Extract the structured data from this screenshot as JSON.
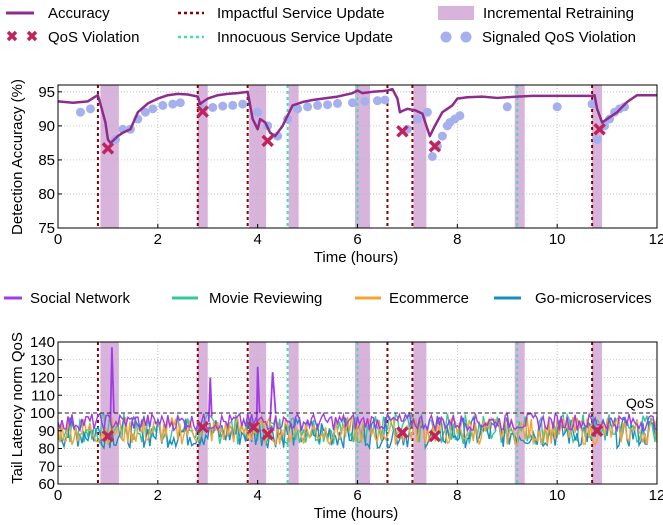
{
  "chart_data": [
    {
      "type": "line",
      "xlabel": "Time (hours)",
      "ylabel": "Detection Accuracy (%)",
      "xlim": [
        0,
        12
      ],
      "ylim": [
        75,
        96
      ],
      "xticks": [
        0,
        2,
        4,
        6,
        8,
        10,
        12
      ],
      "yticks": [
        75,
        80,
        85,
        90,
        95
      ],
      "grid": true,
      "legend": [
        {
          "label": "Accuracy",
          "kind": "line",
          "color": "#8e2c8e"
        },
        {
          "label": "QoS Violation",
          "kind": "x-marker",
          "color": "#c0245c"
        },
        {
          "label": "Impactful Service Update",
          "kind": "dotted-line",
          "color": "#8b0000"
        },
        {
          "label": "Innocuous Service Update",
          "kind": "dotted-line",
          "color": "#3ee0b0"
        },
        {
          "label": "Incremental Retraining",
          "kind": "band",
          "color": "#d8b4dc"
        },
        {
          "label": "Signaled QoS Violation",
          "kind": "dot",
          "color": "#a6b0ee"
        }
      ],
      "accuracy_series": {
        "name": "Accuracy",
        "x": [
          0,
          0.3,
          0.6,
          0.75,
          0.8,
          0.85,
          0.95,
          1.0,
          1.05,
          1.1,
          1.2,
          1.3,
          1.45,
          1.6,
          1.8,
          2.0,
          2.2,
          2.4,
          2.6,
          2.8,
          2.85,
          2.9,
          3.0,
          3.2,
          3.4,
          3.6,
          3.8,
          3.85,
          3.9,
          4.0,
          4.05,
          4.15,
          4.25,
          4.35,
          4.5,
          4.7,
          4.9,
          5.1,
          5.3,
          5.6,
          5.9,
          6.0,
          6.1,
          6.3,
          6.5,
          6.6,
          6.7,
          6.8,
          6.85,
          6.9,
          7.0,
          7.15,
          7.3,
          7.38,
          7.45,
          7.55,
          7.7,
          7.8,
          7.9,
          8.0,
          8.2,
          8.5,
          8.8,
          9.0,
          9.2,
          9.5,
          10.0,
          10.5,
          10.7,
          10.75,
          10.8,
          10.9,
          11.0,
          11.2,
          11.4,
          11.6,
          12.0
        ],
        "y": [
          93.6,
          93.4,
          93.6,
          94.3,
          94.5,
          93.2,
          90.5,
          88.0,
          87.5,
          87.8,
          88.5,
          89.0,
          89.5,
          92.0,
          93.3,
          94.0,
          94.5,
          94.7,
          94.6,
          94.3,
          93.2,
          93.5,
          94.0,
          94.5,
          94.7,
          94.8,
          95.0,
          93.0,
          91.0,
          89.5,
          91.0,
          90.5,
          89.0,
          88.5,
          90.0,
          93.0,
          93.5,
          93.8,
          94.0,
          94.3,
          94.8,
          95.2,
          94.8,
          95.0,
          95.1,
          95.2,
          95.4,
          94.0,
          92.0,
          92.2,
          92.5,
          92.3,
          91.8,
          90.0,
          88.5,
          90.0,
          92.0,
          92.5,
          93.0,
          94.0,
          94.2,
          94.3,
          94.1,
          94.2,
          94.3,
          94.4,
          94.4,
          94.4,
          94.4,
          94.5,
          92.5,
          90.5,
          91.0,
          92.0,
          93.5,
          94.5,
          94.5
        ]
      },
      "signaled_qos_violation": {
        "name": "Signaled QoS Violation",
        "x": [
          0.45,
          0.65,
          1.15,
          1.3,
          1.45,
          1.6,
          1.75,
          1.9,
          2.1,
          2.3,
          2.45,
          2.9,
          3.1,
          3.3,
          3.5,
          3.7,
          4.0,
          4.2,
          4.4,
          4.6,
          4.8,
          5.0,
          5.2,
          5.4,
          5.6,
          5.9,
          6.15,
          6.4,
          6.55,
          7.0,
          7.2,
          7.4,
          7.5,
          7.6,
          7.7,
          7.8,
          7.85,
          7.95,
          8.05,
          9.0,
          10.0,
          10.7,
          10.8,
          10.95,
          11.05,
          11.15,
          11.25,
          11.35
        ],
        "y": [
          92.0,
          92.5,
          88.0,
          89.5,
          89.5,
          91.0,
          92.0,
          92.5,
          93.0,
          93.2,
          93.4,
          92.5,
          92.7,
          92.9,
          93.0,
          93.2,
          92.0,
          90.0,
          88.5,
          91.0,
          92.5,
          92.8,
          93.0,
          93.1,
          93.3,
          93.4,
          93.6,
          93.7,
          93.8,
          89.5,
          91.0,
          92.0,
          85.5,
          87.0,
          88.5,
          90.0,
          90.5,
          91.0,
          91.5,
          92.8,
          92.8,
          93.2,
          88.0,
          90.0,
          91.0,
          92.0,
          92.5,
          92.8
        ]
      },
      "qos_violations": {
        "x": [
          1.0,
          2.9,
          4.2,
          6.9,
          7.55,
          10.85
        ],
        "y": [
          86.7,
          92.1,
          87.8,
          89.2,
          87.0,
          89.5
        ]
      },
      "impactful_updates": [
        0.8,
        2.8,
        3.8,
        6.6,
        7.1,
        10.7
      ],
      "innocuous_updates": [
        4.6,
        6.0,
        9.2
      ],
      "retraining_bands": [
        [
          0.85,
          1.22
        ],
        [
          2.8,
          3.0
        ],
        [
          3.83,
          4.17
        ],
        [
          4.62,
          4.82
        ],
        [
          5.95,
          6.25
        ],
        [
          7.12,
          7.38
        ],
        [
          9.15,
          9.35
        ],
        [
          10.7,
          10.9
        ]
      ]
    },
    {
      "type": "line",
      "xlabel": "Time (hours)",
      "ylabel": "Tail Latency norm QoS",
      "xlim": [
        0,
        12
      ],
      "ylim": [
        60,
        140
      ],
      "xticks": [
        0,
        2,
        4,
        6,
        8,
        10,
        12
      ],
      "yticks": [
        60,
        70,
        80,
        90,
        100,
        110,
        120,
        130,
        140
      ],
      "grid": true,
      "qos_threshold": 100,
      "qos_label": "QoS",
      "series": [
        {
          "name": "Social Network",
          "color": "#a23be6"
        },
        {
          "name": "Movie Reviewing",
          "color": "#35c79a"
        },
        {
          "name": "Ecommerce",
          "color": "#f5a234"
        },
        {
          "name": "Go-microservices",
          "color": "#1a8ec0"
        }
      ],
      "spikes": [
        {
          "series": "Social Network",
          "x": [
            1.05,
            1.08,
            1.12
          ],
          "y": [
            95,
            137,
            100
          ]
        },
        {
          "series": "Social Network",
          "x": [
            3.02,
            3.05,
            3.08
          ],
          "y": [
            95,
            120,
            98
          ]
        },
        {
          "series": "Social Network",
          "x": [
            3.98,
            4.0,
            4.04
          ],
          "y": [
            95,
            126,
            100
          ]
        },
        {
          "series": "Social Network",
          "x": [
            4.25,
            4.3,
            4.36
          ],
          "y": [
            95,
            123,
            100
          ]
        }
      ],
      "qos_violations": {
        "x": [
          1.0,
          2.9,
          3.92,
          4.2,
          6.9,
          7.55,
          10.8
        ],
        "y": [
          87,
          92,
          92,
          88,
          89,
          87,
          90
        ]
      },
      "impactful_updates": [
        0.8,
        2.8,
        3.8,
        6.6,
        7.1,
        10.7
      ],
      "innocuous_updates": [
        4.6,
        6.0,
        9.2
      ],
      "retraining_bands": [
        [
          0.85,
          1.22
        ],
        [
          2.8,
          3.0
        ],
        [
          3.83,
          4.17
        ],
        [
          4.62,
          4.82
        ],
        [
          5.95,
          6.25
        ],
        [
          7.12,
          7.38
        ],
        [
          9.15,
          9.35
        ],
        [
          10.7,
          10.9
        ]
      ]
    }
  ]
}
